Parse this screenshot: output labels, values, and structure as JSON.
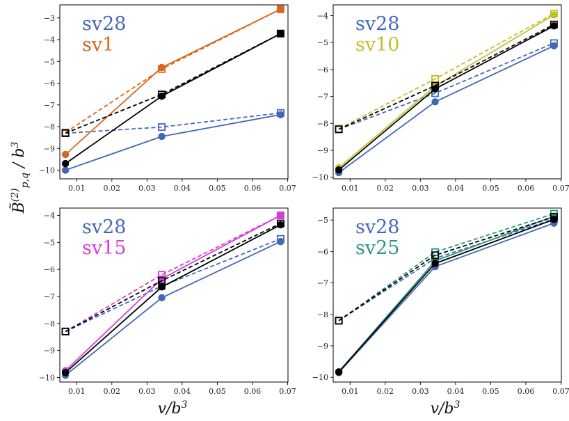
{
  "figure": {
    "ylabel": "B̃(2)p,q / b3",
    "xlabel": "v/b3"
  },
  "colors": {
    "sv28": "#4468b8",
    "sv1": "#d9661c",
    "sv10": "#c4bd2a",
    "sv15": "#d63fd6",
    "sv25": "#2a9a7a",
    "black": "#000000"
  },
  "chart_data": [
    {
      "type": "line",
      "title": "",
      "legend": [
        "sv28",
        "sv1"
      ],
      "legend_placement": "top-left",
      "x": [
        0.0068,
        0.0342,
        0.068
      ],
      "xticks": [
        "0.01",
        "0.02",
        "0.03",
        "0.04",
        "0.05",
        "0.06",
        "0.07"
      ],
      "xtick_values": [
        0.01,
        0.02,
        0.03,
        0.04,
        0.05,
        0.06,
        0.07
      ],
      "xlim": [
        0.0052,
        0.0701
      ],
      "yticks": [
        "−10",
        "−9",
        "−8",
        "−7",
        "−6",
        "−5",
        "−4",
        "−3"
      ],
      "ytick_values": [
        -10,
        -9,
        -8,
        -7,
        -6,
        -5,
        -4,
        -3
      ],
      "ylim": [
        -10.4,
        -2.4
      ],
      "xlabel": "",
      "ylabel": "",
      "series": [
        {
          "name": "sv28 solid",
          "color": "sv28",
          "style": "solid",
          "marker": "circle",
          "values": [
            -10.0,
            -8.45,
            -7.45
          ]
        },
        {
          "name": "sv28 dashed",
          "color": "sv28",
          "style": "dashed",
          "marker": "square",
          "values": [
            -8.3,
            -8.02,
            -7.37
          ]
        },
        {
          "name": "sv1 solid",
          "color": "sv1",
          "style": "solid",
          "marker": "circle",
          "values": [
            -9.28,
            -5.28,
            -2.6
          ]
        },
        {
          "name": "sv1 dashed",
          "color": "sv1",
          "style": "dashed",
          "marker": "square",
          "values": [
            -8.27,
            -5.35,
            -2.6
          ]
        },
        {
          "name": "mixed solid",
          "color": "black",
          "style": "solid",
          "marker": "circle",
          "values": [
            -9.7,
            -6.6,
            -3.72
          ]
        },
        {
          "name": "mixed dashed",
          "color": "black",
          "style": "dashed",
          "marker": "square",
          "values": [
            -8.3,
            -6.52,
            -3.72
          ]
        }
      ]
    },
    {
      "type": "line",
      "title": "",
      "legend": [
        "sv28",
        "sv10"
      ],
      "legend_placement": "top-left",
      "x": [
        0.0068,
        0.0342,
        0.068
      ],
      "xticks": [
        "0.01",
        "0.02",
        "0.03",
        "0.04",
        "0.05",
        "0.06",
        "0.07"
      ],
      "xtick_values": [
        0.01,
        0.02,
        0.03,
        0.04,
        0.05,
        0.06,
        0.07
      ],
      "xlim": [
        0.0052,
        0.0701
      ],
      "yticks": [
        "−10",
        "−9",
        "−8",
        "−7",
        "−6",
        "−5",
        "−4"
      ],
      "ytick_values": [
        -10,
        -9,
        -8,
        -7,
        -6,
        -5,
        -4
      ],
      "ylim": [
        -10.06,
        -3.6
      ],
      "xlabel": "",
      "ylabel": "",
      "series": [
        {
          "name": "sv28 solid",
          "color": "sv28",
          "style": "solid",
          "marker": "circle",
          "values": [
            -9.83,
            -7.2,
            -5.12
          ]
        },
        {
          "name": "sv28 dashed",
          "color": "sv28",
          "style": "dashed",
          "marker": "square",
          "values": [
            -8.22,
            -6.88,
            -5.02
          ]
        },
        {
          "name": "sv10 solid",
          "color": "sv10",
          "style": "solid",
          "marker": "circle",
          "values": [
            -9.65,
            -6.62,
            -3.97
          ]
        },
        {
          "name": "sv10 dashed",
          "color": "sv10",
          "style": "dashed",
          "marker": "square",
          "values": [
            -8.2,
            -6.35,
            -3.92
          ]
        },
        {
          "name": "mixed solid",
          "color": "black",
          "style": "solid",
          "marker": "circle",
          "values": [
            -9.73,
            -6.72,
            -4.38
          ]
        },
        {
          "name": "mixed dashed",
          "color": "black",
          "style": "dashed",
          "marker": "square",
          "values": [
            -8.22,
            -6.6,
            -4.33
          ]
        }
      ]
    },
    {
      "type": "line",
      "title": "",
      "legend": [
        "sv28",
        "sv15"
      ],
      "legend_placement": "top-left",
      "x": [
        0.0068,
        0.0342,
        0.068
      ],
      "xticks": [
        "0.01",
        "0.02",
        "0.03",
        "0.04",
        "0.05",
        "0.06",
        "0.07"
      ],
      "xtick_values": [
        0.01,
        0.02,
        0.03,
        0.04,
        0.05,
        0.06,
        0.07
      ],
      "xlim": [
        0.0052,
        0.0701
      ],
      "yticks": [
        "−10",
        "−9",
        "−8",
        "−7",
        "−6",
        "−5",
        "−4"
      ],
      "ytick_values": [
        -10,
        -9,
        -8,
        -7,
        -6,
        -5,
        -4
      ],
      "ylim": [
        -10.17,
        -3.73
      ],
      "xlabel": "v/b3",
      "ylabel": "",
      "series": [
        {
          "name": "sv28 solid",
          "color": "sv28",
          "style": "solid",
          "marker": "circle",
          "values": [
            -9.92,
            -7.05,
            -4.97
          ]
        },
        {
          "name": "sv28 dashed",
          "color": "sv28",
          "style": "dashed",
          "marker": "square",
          "values": [
            -8.3,
            -6.62,
            -4.87
          ]
        },
        {
          "name": "sv15 solid",
          "color": "sv15",
          "style": "solid",
          "marker": "circle",
          "values": [
            -9.75,
            -6.35,
            -4.0
          ]
        },
        {
          "name": "sv15 dashed",
          "color": "sv15",
          "style": "dashed",
          "marker": "square",
          "values": [
            -8.3,
            -6.2,
            -4.0
          ]
        },
        {
          "name": "mixed solid",
          "color": "black",
          "style": "solid",
          "marker": "circle",
          "values": [
            -9.82,
            -6.65,
            -4.35
          ]
        },
        {
          "name": "mixed dashed",
          "color": "black",
          "style": "dashed",
          "marker": "square",
          "values": [
            -8.3,
            -6.42,
            -4.3
          ]
        }
      ]
    },
    {
      "type": "line",
      "title": "",
      "legend": [
        "sv28",
        "sv25"
      ],
      "legend_placement": "top-left",
      "x": [
        0.0068,
        0.0342,
        0.068
      ],
      "xticks": [
        "0.01",
        "0.02",
        "0.03",
        "0.04",
        "0.05",
        "0.06",
        "0.07"
      ],
      "xtick_values": [
        0.01,
        0.02,
        0.03,
        0.04,
        0.05,
        0.06,
        0.07
      ],
      "xlim": [
        0.0052,
        0.0701
      ],
      "yticks": [
        "−10",
        "−9",
        "−8",
        "−7",
        "−6",
        "−5"
      ],
      "ytick_values": [
        -10,
        -9,
        -8,
        -7,
        -6,
        -5
      ],
      "ylim": [
        -10.15,
        -4.62
      ],
      "xlabel": "v/b3",
      "ylabel": "",
      "series": [
        {
          "name": "sv28 solid",
          "color": "sv28",
          "style": "solid",
          "marker": "circle",
          "values": [
            -9.85,
            -6.48,
            -5.1
          ]
        },
        {
          "name": "sv28 dashed",
          "color": "sv28",
          "style": "dashed",
          "marker": "square",
          "values": [
            -8.2,
            -6.22,
            -4.97
          ]
        },
        {
          "name": "sv25 solid",
          "color": "sv25",
          "style": "solid",
          "marker": "circle",
          "values": [
            -9.82,
            -6.3,
            -4.88
          ]
        },
        {
          "name": "sv25 dashed",
          "color": "sv25",
          "style": "dashed",
          "marker": "square",
          "values": [
            -8.2,
            -6.02,
            -4.8
          ]
        },
        {
          "name": "mixed solid",
          "color": "black",
          "style": "solid",
          "marker": "circle",
          "values": [
            -9.83,
            -6.38,
            -4.98
          ]
        },
        {
          "name": "mixed dashed",
          "color": "black",
          "style": "dashed",
          "marker": "square",
          "values": [
            -8.2,
            -6.12,
            -4.9
          ]
        }
      ]
    }
  ]
}
